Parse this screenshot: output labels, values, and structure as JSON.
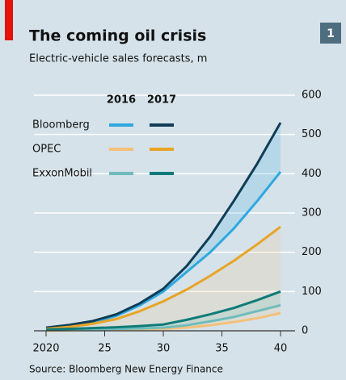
{
  "badge": "1",
  "chart_data": {
    "type": "line",
    "title": "The coming oil crisis",
    "subtitle": "Electric-vehicle sales forecasts, m",
    "source": "Source: Bloomberg New Energy Finance",
    "x": [
      2020,
      2022,
      2024,
      2026,
      2028,
      2030,
      2032,
      2034,
      2036,
      2038,
      2040
    ],
    "series": [
      {
        "name": "Bloomberg",
        "year": "2016",
        "color": "#2fa8e0",
        "values": [
          6,
          12,
          22,
          38,
          65,
          100,
          150,
          200,
          260,
          330,
          405
        ]
      },
      {
        "name": "Bloomberg",
        "year": "2017",
        "color": "#0f3d57",
        "values": [
          8,
          15,
          25,
          42,
          70,
          107,
          165,
          240,
          330,
          425,
          530
        ]
      },
      {
        "name": "OPEC",
        "year": "2016",
        "color": "#f5c07a",
        "values": [
          0,
          1,
          2,
          3,
          4,
          5,
          8,
          14,
          22,
          32,
          45
        ]
      },
      {
        "name": "OPEC",
        "year": "2017",
        "color": "#e8a427",
        "values": [
          5,
          10,
          18,
          30,
          50,
          75,
          105,
          140,
          178,
          220,
          265
        ]
      },
      {
        "name": "ExxonMobil",
        "year": "2016",
        "color": "#6fbcbc",
        "values": [
          2,
          3,
          4,
          5,
          6,
          8,
          14,
          24,
          35,
          50,
          65
        ]
      },
      {
        "name": "ExxonMobil",
        "year": "2017",
        "color": "#0e7b78",
        "values": [
          3,
          5,
          7,
          9,
          12,
          16,
          28,
          42,
          58,
          78,
          100
        ]
      }
    ],
    "xlim": [
      2019.5,
      2040.5
    ],
    "xticks": [
      2020,
      {
        "value": 2025,
        "label": "25"
      },
      {
        "value": 2030,
        "label": "30"
      },
      {
        "value": 2035,
        "label": "35"
      },
      {
        "value": 2040,
        "label": "40"
      }
    ],
    "ylim": [
      0,
      600
    ],
    "yticks": [
      0,
      100,
      200,
      300,
      400,
      500,
      600
    ],
    "grid": true
  }
}
